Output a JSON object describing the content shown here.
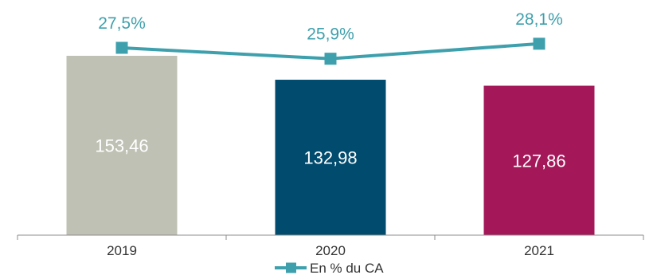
{
  "chart_data": {
    "type": "bar",
    "categories": [
      "2019",
      "2020",
      "2021"
    ],
    "series": [
      {
        "kind": "bar",
        "values": [
          153.46,
          132.98,
          127.86
        ],
        "value_labels": [
          "153,46",
          "132,98",
          "127,86"
        ],
        "colors": [
          "#bfc1b4",
          "#004b6e",
          "#a4185a"
        ],
        "label_color": "#ffffff"
      },
      {
        "kind": "line",
        "name": "En % du CA",
        "values": [
          27.5,
          25.9,
          28.1
        ],
        "value_labels": [
          "27,5%",
          "25,9%",
          "28,1%"
        ],
        "color": "#3fa0ad"
      }
    ],
    "title": "",
    "xlabel": "",
    "ylabel": "",
    "ylim": [
      0,
      170
    ],
    "line_ylim": [
      0,
      29.5
    ],
    "grid": false,
    "legend": "bottom-center"
  }
}
